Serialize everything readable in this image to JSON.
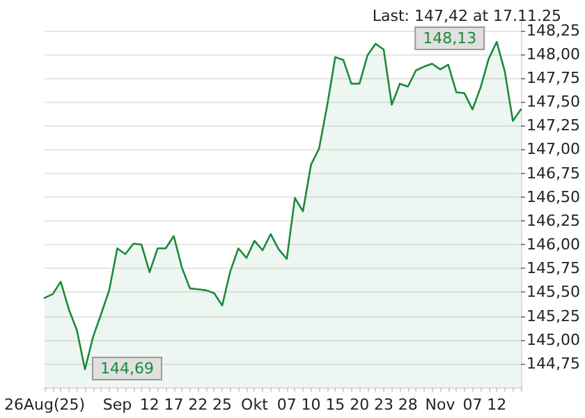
{
  "chart_data": {
    "type": "area",
    "title": "Last: 147,42 at 17.11.25",
    "categories": [
      "26Aug(25)",
      null,
      null,
      null,
      null,
      null,
      null,
      null,
      null,
      "Sep",
      null,
      null,
      null,
      "12",
      null,
      null,
      "17",
      null,
      null,
      "22",
      null,
      null,
      "25",
      null,
      null,
      null,
      "Okt",
      null,
      null,
      null,
      "07",
      null,
      null,
      "10",
      null,
      null,
      "15",
      null,
      null,
      "20",
      null,
      null,
      "23",
      null,
      null,
      "28",
      null,
      null,
      null,
      "Nov",
      null,
      null,
      null,
      "07",
      null,
      null,
      "12",
      null,
      null,
      null
    ],
    "series": [
      {
        "color": "#1a8a3a",
        "values": [
          145.44,
          145.48,
          145.61,
          145.32,
          145.1,
          144.69,
          145.03,
          145.27,
          145.52,
          145.96,
          145.9,
          146.01,
          146.0,
          145.71,
          145.96,
          145.96,
          146.09,
          145.76,
          145.54,
          145.53,
          145.52,
          145.49,
          145.36,
          145.72,
          145.96,
          145.86,
          146.04,
          145.94,
          146.11,
          145.95,
          145.85,
          146.49,
          146.35,
          146.84,
          147.01,
          147.46,
          147.97,
          147.94,
          147.69,
          147.69,
          147.99,
          148.11,
          148.05,
          147.47,
          147.69,
          147.66,
          147.83,
          147.87,
          147.9,
          147.84,
          147.89,
          147.6,
          147.59,
          147.42,
          147.65,
          147.95,
          148.13,
          147.82,
          147.3,
          147.42
        ]
      }
    ],
    "annotations": [
      "144,69",
      "148,13"
    ],
    "ylim": [
      144.5,
      148.35
    ],
    "yticks": [
      {
        "value": 144.75,
        "label": "144,75"
      },
      {
        "value": 145,
        "label": "145,00"
      },
      {
        "value": 145.25,
        "label": "145,25"
      },
      {
        "value": 145.5,
        "label": "145,50"
      },
      {
        "value": 145.75,
        "label": "145,75"
      },
      {
        "value": 146,
        "label": "146,00"
      },
      {
        "value": 146.25,
        "label": "146,25"
      },
      {
        "value": 146.5,
        "label": "146,50"
      },
      {
        "value": 146.75,
        "label": "146,75"
      },
      {
        "value": 147,
        "label": "147,00"
      },
      {
        "value": 147.25,
        "label": "147,25"
      },
      {
        "value": 147.5,
        "label": "147,50"
      },
      {
        "value": 147.75,
        "label": "147,75"
      },
      {
        "value": 148,
        "label": "148,00"
      },
      {
        "value": 148.25,
        "label": "148,25"
      }
    ],
    "grid": "y",
    "marker": "none"
  }
}
